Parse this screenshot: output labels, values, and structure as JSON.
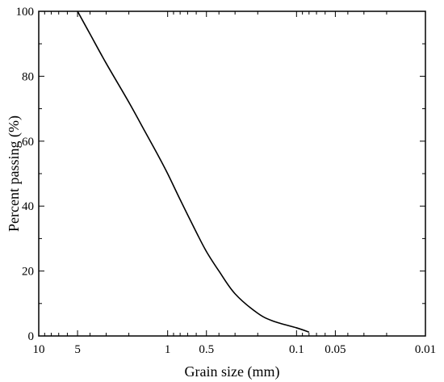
{
  "chart_data": {
    "type": "line",
    "title": "",
    "xlabel": "Grain size (mm)",
    "ylabel": "Percent passing  (%)",
    "xscale": "log",
    "x_reversed": true,
    "xlim": [
      10,
      0.01
    ],
    "ylim": [
      0,
      100
    ],
    "grid": false,
    "legend": "none",
    "x_ticks": [
      {
        "value": 10,
        "label": "10"
      },
      {
        "value": 5,
        "label": "5"
      },
      {
        "value": 1,
        "label": "1"
      },
      {
        "value": 0.5,
        "label": "0.5"
      },
      {
        "value": 0.1,
        "label": "0.1"
      },
      {
        "value": 0.05,
        "label": "0.05"
      },
      {
        "value": 0.01,
        "label": "0.01"
      }
    ],
    "y_ticks": [
      {
        "value": 0,
        "label": "0"
      },
      {
        "value": 20,
        "label": "20"
      },
      {
        "value": 40,
        "label": "40"
      },
      {
        "value": 60,
        "label": "60"
      },
      {
        "value": 80,
        "label": "80"
      },
      {
        "value": 100,
        "label": "100"
      }
    ],
    "series": [
      {
        "color": "#000000",
        "x": [
          5,
          4,
          3,
          2,
          1.5,
          1.2,
          1.0,
          0.8,
          0.6,
          0.5,
          0.4,
          0.3,
          0.2,
          0.15,
          0.1,
          0.08
        ],
        "y": [
          100,
          93,
          84,
          72,
          63,
          56,
          50,
          42,
          32,
          26,
          20,
          13,
          7,
          4.5,
          2.5,
          1.2
        ]
      }
    ]
  }
}
